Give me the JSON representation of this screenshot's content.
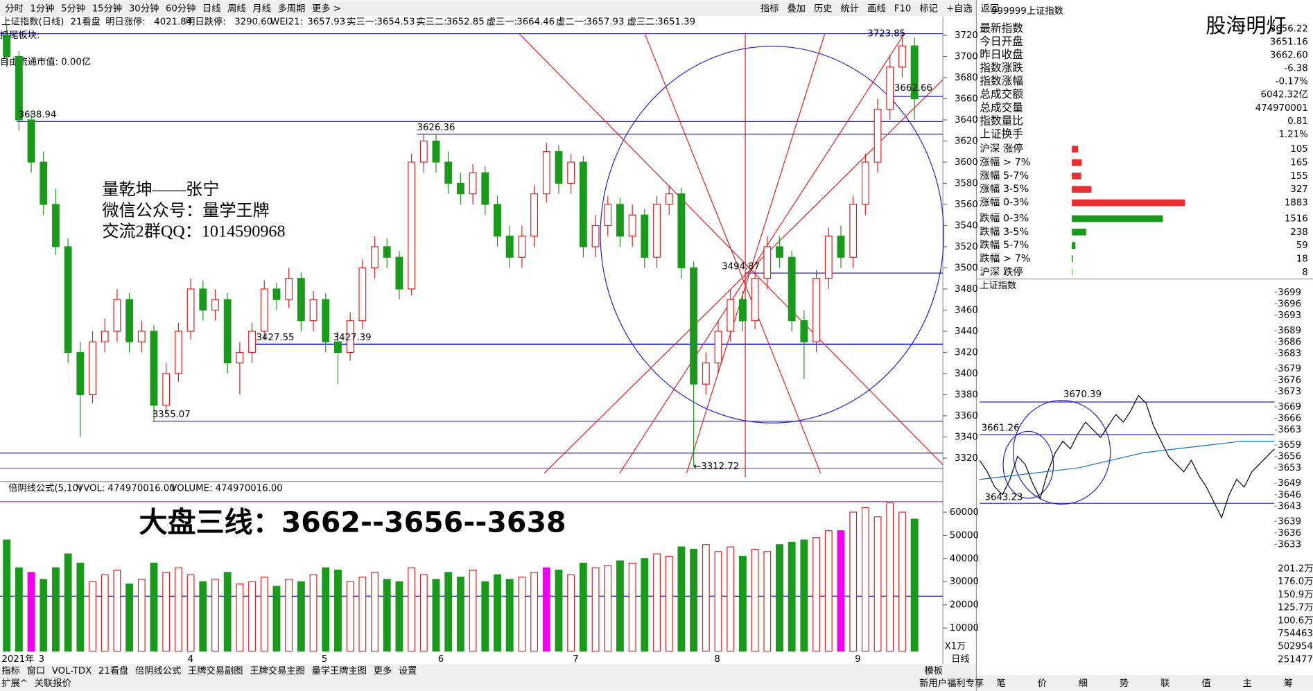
{
  "toolbar": {
    "periods": [
      "分时",
      "1分钟",
      "5分钟",
      "15分钟",
      "30分钟",
      "60分钟",
      "日线",
      "周线",
      "月线",
      "多周期",
      "更多 >"
    ],
    "tools": [
      "指标",
      "叠加",
      "历史",
      "统计",
      "画线",
      "F10",
      "标记",
      "+自选",
      "返回"
    ]
  },
  "main": {
    "title": "上证指数(日线)",
    "header": "21看盘",
    "indicators": [
      {
        "label": "明日涨停:",
        "value": "4021.84"
      },
      {
        "label": "明日跌停:",
        "value": "3290.60"
      },
      {
        "label": "WEI21:",
        "value": "3657.93"
      },
      {
        "label": "实三一:",
        "value": "3654.53"
      },
      {
        "label": "实三二:",
        "value": "3652.85"
      },
      {
        "label": "虚三一:",
        "value": "3664.46"
      },
      {
        "label": "虚二一:",
        "value": "3657.93"
      },
      {
        "label": "虚三二:",
        "value": "3651.39"
      }
    ],
    "sector": "抓尾板块:",
    "float_cap": "自由流通市值: 0.00亿",
    "overlay": [
      "量乾坤——张宁",
      "微信公众号：量学王牌",
      "交流2群QQ：1014590968"
    ],
    "yticks": [
      3320,
      3340,
      3360,
      3380,
      3400,
      3420,
      3440,
      3460,
      3480,
      3500,
      3520,
      3540,
      3560,
      3580,
      3600,
      3620,
      3640,
      3660,
      3680,
      3700,
      3720
    ],
    "annotations": [
      "3638.94",
      "3626.36",
      "3427.55",
      "3427.39",
      "3355.07",
      "3494.87",
      "3723.85",
      "3662.66",
      "←3312.72"
    ],
    "x_labels": [
      "2021年",
      "3",
      "4",
      "5",
      "6",
      "7",
      "8",
      "9"
    ],
    "axis_label": "日线",
    "candles": [
      [
        3720,
        3700,
        3730,
        3690
      ],
      [
        3700,
        3640,
        3705,
        3630
      ],
      [
        3640,
        3600,
        3648,
        3590
      ],
      [
        3600,
        3560,
        3610,
        3550
      ],
      [
        3560,
        3520,
        3575,
        3512
      ],
      [
        3520,
        3420,
        3528,
        3410
      ],
      [
        3420,
        3380,
        3430,
        3340
      ],
      [
        3380,
        3430,
        3440,
        3372
      ],
      [
        3430,
        3440,
        3452,
        3420
      ],
      [
        3440,
        3470,
        3480,
        3430
      ],
      [
        3470,
        3430,
        3476,
        3420
      ],
      [
        3430,
        3440,
        3450,
        3420
      ],
      [
        3440,
        3370,
        3446,
        3355
      ],
      [
        3370,
        3400,
        3410,
        3362
      ],
      [
        3400,
        3440,
        3448,
        3392
      ],
      [
        3440,
        3480,
        3490,
        3432
      ],
      [
        3480,
        3460,
        3488,
        3450
      ],
      [
        3460,
        3470,
        3480,
        3450
      ],
      [
        3470,
        3410,
        3476,
        3400
      ],
      [
        3410,
        3420,
        3430,
        3380
      ],
      [
        3420,
        3440,
        3448,
        3410
      ],
      [
        3440,
        3480,
        3488,
        3432
      ],
      [
        3480,
        3470,
        3486,
        3460
      ],
      [
        3470,
        3490,
        3500,
        3462
      ],
      [
        3490,
        3450,
        3496,
        3440
      ],
      [
        3450,
        3470,
        3478,
        3440
      ],
      [
        3470,
        3430,
        3476,
        3420
      ],
      [
        3430,
        3420,
        3440,
        3390
      ],
      [
        3420,
        3450,
        3458,
        3412
      ],
      [
        3450,
        3500,
        3508,
        3442
      ],
      [
        3500,
        3520,
        3530,
        3490
      ],
      [
        3520,
        3510,
        3528,
        3500
      ],
      [
        3510,
        3480,
        3516,
        3470
      ],
      [
        3480,
        3600,
        3608,
        3474
      ],
      [
        3600,
        3620,
        3626,
        3590
      ],
      [
        3620,
        3600,
        3626,
        3590
      ],
      [
        3600,
        3580,
        3610,
        3570
      ],
      [
        3580,
        3570,
        3590,
        3560
      ],
      [
        3570,
        3590,
        3598,
        3560
      ],
      [
        3590,
        3560,
        3596,
        3550
      ],
      [
        3560,
        3530,
        3568,
        3520
      ],
      [
        3530,
        3510,
        3540,
        3500
      ],
      [
        3510,
        3530,
        3540,
        3500
      ],
      [
        3530,
        3570,
        3578,
        3520
      ],
      [
        3570,
        3610,
        3618,
        3562
      ],
      [
        3610,
        3580,
        3616,
        3570
      ],
      [
        3580,
        3600,
        3608,
        3570
      ],
      [
        3600,
        3520,
        3606,
        3510
      ],
      [
        3520,
        3540,
        3550,
        3510
      ],
      [
        3540,
        3560,
        3568,
        3530
      ],
      [
        3560,
        3530,
        3566,
        3520
      ],
      [
        3530,
        3550,
        3560,
        3520
      ],
      [
        3550,
        3510,
        3556,
        3500
      ],
      [
        3510,
        3560,
        3568,
        3500
      ],
      [
        3560,
        3570,
        3578,
        3550
      ],
      [
        3570,
        3500,
        3576,
        3490
      ],
      [
        3500,
        3390,
        3506,
        3312
      ],
      [
        3390,
        3410,
        3420,
        3380
      ],
      [
        3410,
        3440,
        3450,
        3400
      ],
      [
        3440,
        3470,
        3480,
        3430
      ],
      [
        3470,
        3450,
        3478,
        3440
      ],
      [
        3450,
        3490,
        3498,
        3442
      ],
      [
        3490,
        3520,
        3530,
        3480
      ],
      [
        3520,
        3510,
        3530,
        3500
      ],
      [
        3510,
        3450,
        3516,
        3440
      ],
      [
        3450,
        3430,
        3460,
        3395
      ],
      [
        3430,
        3490,
        3498,
        3420
      ],
      [
        3490,
        3530,
        3538,
        3480
      ],
      [
        3530,
        3510,
        3540,
        3500
      ],
      [
        3510,
        3560,
        3568,
        3500
      ],
      [
        3560,
        3600,
        3608,
        3550
      ],
      [
        3600,
        3650,
        3660,
        3590
      ],
      [
        3650,
        3690,
        3700,
        3640
      ],
      [
        3690,
        3710,
        3723.85,
        3680
      ],
      [
        3710,
        3660,
        3718,
        3640
      ]
    ]
  },
  "volume": {
    "header": "倍阴线公式(5,10)",
    "vwol": "VVOL: 474970016.00",
    "vol": "VOLUME: 474970016.00",
    "ylim": [
      0,
      66000
    ],
    "yticks": [
      10000,
      20000,
      30000,
      40000,
      50000,
      60000
    ],
    "unit": "X1万",
    "big_text": "大盘三线：3662--3656--3638",
    "highlight": [
      2,
      44,
      68
    ],
    "values": [
      48000,
      36000,
      34000,
      31000,
      36000,
      42000,
      38000,
      30000,
      33000,
      35000,
      29000,
      31000,
      38000,
      34000,
      36000,
      33000,
      30000,
      31000,
      34000,
      29000,
      30000,
      32000,
      28000,
      31000,
      30000,
      33000,
      36000,
      35000,
      30000,
      32000,
      34000,
      31000,
      30000,
      36000,
      33000,
      31000,
      34000,
      32000,
      35000,
      30000,
      33000,
      31000,
      32000,
      34000,
      36000,
      35000,
      33000,
      38000,
      36000,
      37000,
      39000,
      38000,
      40000,
      42000,
      41000,
      45000,
      44000,
      46000,
      43000,
      45000,
      41000,
      44000,
      43000,
      46000,
      47000,
      48000,
      49000,
      52000,
      52000,
      60000,
      62000,
      58000,
      64000,
      60000,
      57000
    ]
  },
  "bottom_tabs": [
    "指标",
    "窗口",
    "VOL-TDX",
    "21看盘",
    "倍阴线公式",
    "王牌交易副图",
    "王牌交易主图",
    "量学王牌主图",
    "更多",
    "设置"
  ],
  "bottom_tabs2": [
    "扩展^",
    "关联报价"
  ],
  "bottom_right": [
    "模板",
    "新用户福利专享"
  ],
  "quote": {
    "code": "999999",
    "name": "上证指数",
    "watermark": "股海明灯",
    "rows": [
      {
        "label": "最新指数",
        "value": "3656.22"
      },
      {
        "label": "今日开盘",
        "value": "3651.16"
      },
      {
        "label": "昨日收盘",
        "value": "3662.60"
      },
      {
        "label": "指数涨跌",
        "value": "-6.38"
      },
      {
        "label": "指数涨幅",
        "value": "-0.17%"
      },
      {
        "label": "总成交额",
        "value": "6042.32亿"
      },
      {
        "label": "总成交量",
        "value": "474970001"
      },
      {
        "label": "指数量比",
        "value": "0.81"
      },
      {
        "label": "上证换手",
        "value": "1.21%"
      }
    ],
    "breadth": [
      {
        "label": "沪深 涨停",
        "value": 105,
        "color": "#e83030"
      },
      {
        "label": "涨幅 > 7%",
        "value": 165,
        "color": "#e83030"
      },
      {
        "label": "涨幅 5-7%",
        "value": 155,
        "color": "#e83030"
      },
      {
        "label": "涨幅 3-5%",
        "value": 327,
        "color": "#e83030"
      },
      {
        "label": "涨幅 0-3%",
        "value": 1883,
        "color": "#e83030"
      },
      {
        "label": "跌幅 0-3%",
        "value": 1516,
        "color": "#1a9a1a"
      },
      {
        "label": "跌幅 3-5%",
        "value": 238,
        "color": "#1a9a1a"
      },
      {
        "label": "跌幅 5-7%",
        "value": 59,
        "color": "#1a9a1a"
      },
      {
        "label": "跌幅 > 7%",
        "value": 18,
        "color": "#1a9a1a"
      },
      {
        "label": "沪深 跌停",
        "value": 8,
        "color": "#1a9a1a"
      }
    ]
  },
  "intraday": {
    "title": "上证指数",
    "ylim": [
      3632,
      3700
    ],
    "yticks": [
      3699,
      3696,
      3693,
      3689,
      3686,
      3683,
      3679,
      3676,
      3673,
      3669,
      3666,
      3663,
      3659,
      3656,
      3653,
      3649,
      3646,
      3643,
      3639,
      3636,
      3633
    ],
    "labels": [
      "3670.39",
      "3661.26",
      "3643.23"
    ],
    "vol_labels": [
      "201.2万",
      "176.0万",
      "150.9万",
      "125.7万",
      "100.6万",
      "754463",
      "502954",
      "251477"
    ],
    "values": [
      3655,
      3652,
      3648,
      3646,
      3650,
      3656,
      3654,
      3649,
      3645,
      3652,
      3657,
      3660,
      3658,
      3662,
      3665,
      3663,
      3661,
      3664,
      3667,
      3665,
      3668,
      3672,
      3670,
      3664,
      3660,
      3656,
      3654,
      3652,
      3655,
      3651,
      3648,
      3644,
      3640,
      3646,
      3650,
      3648,
      3652,
      3654,
      3656,
      3658
    ],
    "avg": [
      3650,
      3651,
      3652,
      3653,
      3655,
      3657,
      3658,
      3659,
      3660,
      3660
    ]
  },
  "nav": [
    "笔",
    "价",
    "细",
    "势",
    "联",
    "值",
    "主",
    "筹"
  ]
}
